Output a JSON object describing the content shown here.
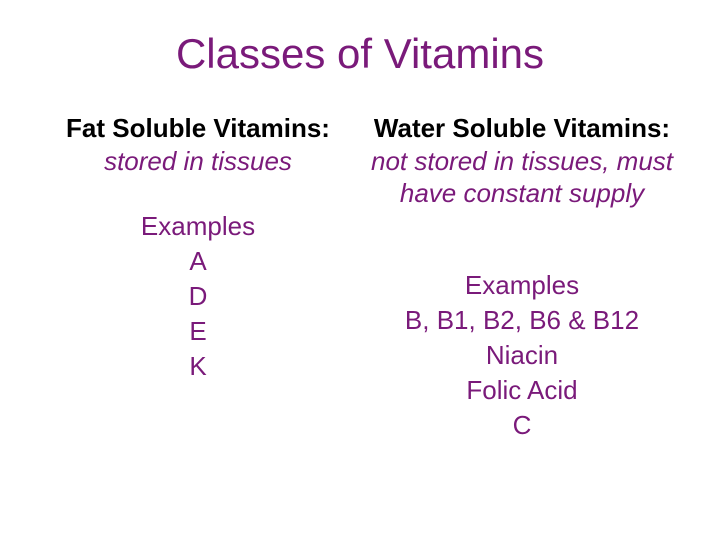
{
  "title": "Classes of Vitamins",
  "colors": {
    "title": "#7a1a7a",
    "heading": "#000000",
    "desc": "#7a1a7a",
    "examples": "#7a1a7a",
    "background": "#ffffff"
  },
  "fontsizes": {
    "title": 42,
    "body": 26
  },
  "left": {
    "heading": "Fat Soluble Vitamins:",
    "desc": "stored in tissues",
    "examples_label": "Examples",
    "examples": [
      "A",
      "D",
      "E",
      "K"
    ]
  },
  "right": {
    "heading": "Water  Soluble Vitamins:",
    "desc": "not stored in tissues, must have constant supply",
    "examples_label": "Examples",
    "examples": [
      "B, B1, B2, B6 & B12",
      "Niacin",
      "Folic Acid",
      "C"
    ]
  }
}
